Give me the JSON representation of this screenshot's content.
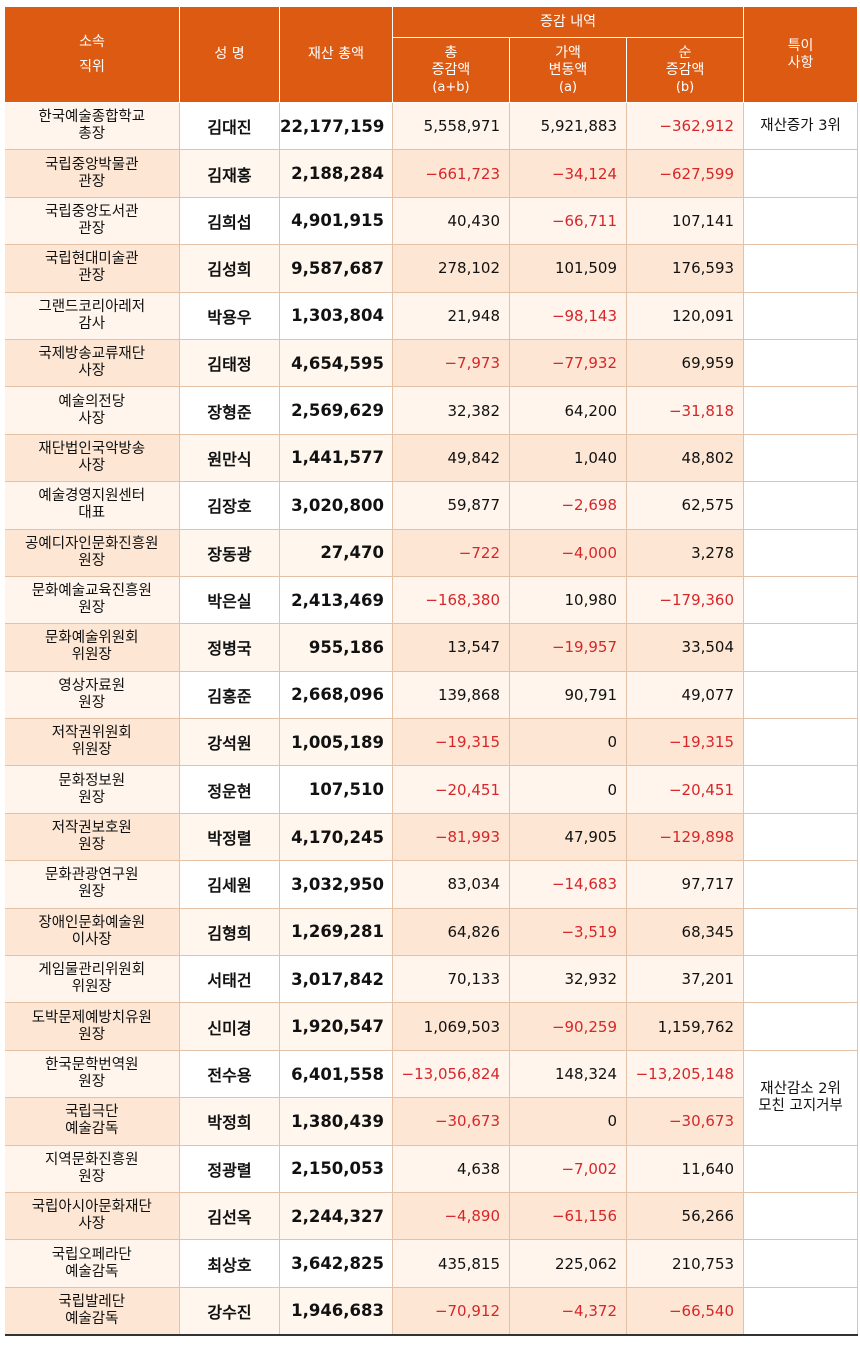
{
  "header": {
    "affiliation": "소속",
    "position": "직위",
    "name": "성 명",
    "total": "재산 총액",
    "change_group": "증감 내역",
    "total_change": [
      "총",
      "증감액",
      "(a+b)"
    ],
    "value_change": [
      "가액",
      "변동액",
      "(a)"
    ],
    "net_change": [
      "순",
      "증감액",
      "(b)"
    ],
    "notes": [
      "특이",
      "사항"
    ]
  },
  "rows": [
    {
      "org": "한국예술종합학교",
      "pos": "총장",
      "name": "김대진",
      "total": "22,177,159",
      "ab": "5,558,971",
      "a": "5,921,883",
      "b": "-362,912",
      "note": [
        "재산증가 3위"
      ]
    },
    {
      "org": "국립중앙박물관",
      "pos": "관장",
      "name": "김재홍",
      "total": "2,188,284",
      "ab": "-661,723",
      "a": "-34,124",
      "b": "-627,599",
      "note": []
    },
    {
      "org": "국립중앙도서관",
      "pos": "관장",
      "name": "김희섭",
      "total": "4,901,915",
      "ab": "40,430",
      "a": "-66,711",
      "b": "107,141",
      "note": []
    },
    {
      "org": "국립현대미술관",
      "pos": "관장",
      "name": "김성희",
      "total": "9,587,687",
      "ab": "278,102",
      "a": "101,509",
      "b": "176,593",
      "note": []
    },
    {
      "org": "그랜드코리아레저",
      "pos": "감사",
      "name": "박용우",
      "total": "1,303,804",
      "ab": "21,948",
      "a": "-98,143",
      "b": "120,091",
      "note": []
    },
    {
      "org": "국제방송교류재단",
      "pos": "사장",
      "name": "김태정",
      "total": "4,654,595",
      "ab": "-7,973",
      "a": "-77,932",
      "b": "69,959",
      "note": []
    },
    {
      "org": "예술의전당",
      "pos": "사장",
      "name": "장형준",
      "total": "2,569,629",
      "ab": "32,382",
      "a": "64,200",
      "b": "-31,818",
      "note": []
    },
    {
      "org": "재단법인국악방송",
      "pos": "사장",
      "name": "원만식",
      "total": "1,441,577",
      "ab": "49,842",
      "a": "1,040",
      "b": "48,802",
      "note": []
    },
    {
      "org": "예술경영지원센터",
      "pos": "대표",
      "name": "김장호",
      "total": "3,020,800",
      "ab": "59,877",
      "a": "-2,698",
      "b": "62,575",
      "note": []
    },
    {
      "org": "공예디자인문화진흥원",
      "pos": "원장",
      "name": "장동광",
      "total": "27,470",
      "ab": "-722",
      "a": "-4,000",
      "b": "3,278",
      "note": []
    },
    {
      "org": "문화예술교육진흥원",
      "pos": "원장",
      "name": "박은실",
      "total": "2,413,469",
      "ab": "-168,380",
      "a": "10,980",
      "b": "-179,360",
      "note": []
    },
    {
      "org": "문화예술위원회",
      "pos": "위원장",
      "name": "정병국",
      "total": "955,186",
      "ab": "13,547",
      "a": "-19,957",
      "b": "33,504",
      "note": []
    },
    {
      "org": "영상자료원",
      "pos": "원장",
      "name": "김홍준",
      "total": "2,668,096",
      "ab": "139,868",
      "a": "90,791",
      "b": "49,077",
      "note": []
    },
    {
      "org": "저작권위원회",
      "pos": "위원장",
      "name": "강석원",
      "total": "1,005,189",
      "ab": "-19,315",
      "a": "0",
      "b": "-19,315",
      "note": []
    },
    {
      "org": "문화정보원",
      "pos": "원장",
      "name": "정운현",
      "total": "107,510",
      "ab": "-20,451",
      "a": "0",
      "b": "-20,451",
      "note": []
    },
    {
      "org": "저작권보호원",
      "pos": "원장",
      "name": "박정렬",
      "total": "4,170,245",
      "ab": "-81,993",
      "a": "47,905",
      "b": "-129,898",
      "note": []
    },
    {
      "org": "문화관광연구원",
      "pos": "원장",
      "name": "김세원",
      "total": "3,032,950",
      "ab": "83,034",
      "a": "-14,683",
      "b": "97,717",
      "note": []
    },
    {
      "org": "장애인문화예술원",
      "pos": "이사장",
      "name": "김형희",
      "total": "1,269,281",
      "ab": "64,826",
      "a": "-3,519",
      "b": "68,345",
      "note": []
    },
    {
      "org": "게임물관리위원회",
      "pos": "위원장",
      "name": "서태건",
      "total": "3,017,842",
      "ab": "70,133",
      "a": "32,932",
      "b": "37,201",
      "note": []
    },
    {
      "org": "도박문제예방치유원",
      "pos": "원장",
      "name": "신미경",
      "total": "1,920,547",
      "ab": "1,069,503",
      "a": "-90,259",
      "b": "1,159,762",
      "note": []
    },
    {
      "org": "한국문학번역원",
      "pos": "원장",
      "name": "전수용",
      "total": "6,401,558",
      "ab": "-13,056,824",
      "a": "148,324",
      "b": "-13,205,148",
      "note": [
        "재산감소 2위",
        "모친 고지거부"
      ]
    },
    {
      "org": "국립극단",
      "pos": "예술감독",
      "name": "박정희",
      "total": "1,380,439",
      "ab": "-30,673",
      "a": "0",
      "b": "-30,673",
      "note": []
    },
    {
      "org": "지역문화진흥원",
      "pos": "원장",
      "name": "정광렬",
      "total": "2,150,053",
      "ab": "4,638",
      "a": "-7,002",
      "b": "11,640",
      "note": []
    },
    {
      "org": "국립아시아문화재단",
      "pos": "사장",
      "name": "김선옥",
      "total": "2,244,327",
      "ab": "-4,890",
      "a": "-61,156",
      "b": "56,266",
      "note": []
    },
    {
      "org": "국립오페라단",
      "pos": "예술감독",
      "name": "최상호",
      "total": "3,642,825",
      "ab": "435,815",
      "a": "225,062",
      "b": "210,753",
      "note": []
    },
    {
      "org": "국립발레단",
      "pos": "예술감독",
      "name": "강수진",
      "total": "1,946,683",
      "ab": "-70,912",
      "a": "-4,372",
      "b": "-66,540",
      "note": []
    }
  ]
}
